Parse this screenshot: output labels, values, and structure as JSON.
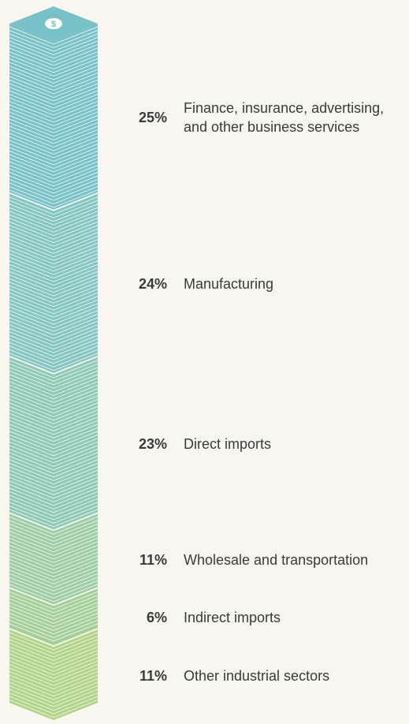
{
  "chart_data": {
    "type": "stack",
    "categories": [
      "Finance, insurance, advertising, and other business services",
      "Manufacturing",
      "Direct imports",
      "Wholesale and transportation",
      "Indirect imports",
      "Other industrial sectors"
    ],
    "values": [
      25,
      24,
      23,
      11,
      6,
      11
    ],
    "value_labels": [
      "25%",
      "24%",
      "23%",
      "11%",
      "6%",
      "11%"
    ],
    "colors": [
      "#77c1c7",
      "#82c5c1",
      "#8ec9b5",
      "#9ccda5",
      "#a6cf98",
      "#b2d388"
    ]
  }
}
